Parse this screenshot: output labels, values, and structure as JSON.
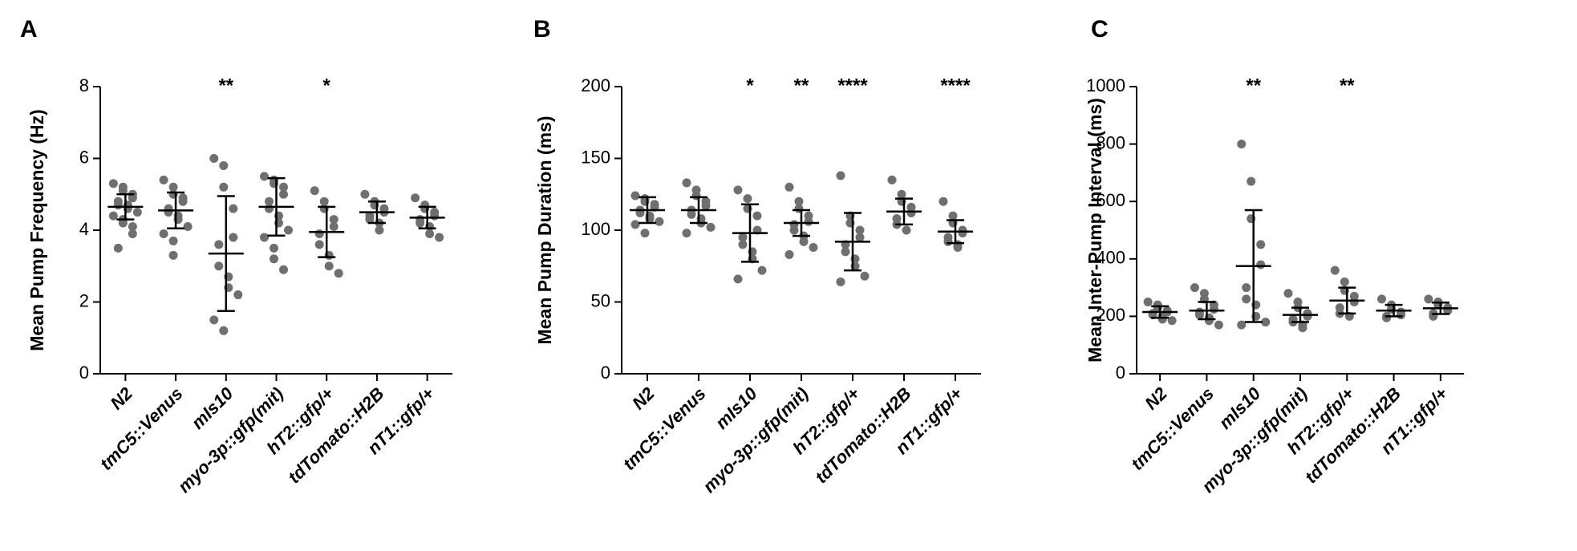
{
  "chart_data": [
    {
      "type": "dot",
      "panel_label": "A",
      "ylabel": "Mean Pump Frequency (Hz)",
      "color": "#6f6f6f",
      "categories": [
        "N2",
        "tmC5::Venus",
        "mIs10",
        "myo-3p::gfp(mit)",
        "hT2::gfp/+",
        "tdTomato::H2B",
        "nT1::gfp/+"
      ],
      "ylim": [
        0,
        8
      ],
      "yticks": [
        0,
        2,
        4,
        6,
        8
      ],
      "means": [
        4.65,
        4.55,
        3.35,
        4.65,
        3.95,
        4.5,
        4.35
      ],
      "sds": [
        0.35,
        0.5,
        1.6,
        0.8,
        0.7,
        0.3,
        0.3
      ],
      "significance": [
        null,
        null,
        "**",
        null,
        "*",
        null,
        null
      ],
      "points": [
        [
          5.3,
          5.2,
          5.1,
          5.0,
          4.9,
          4.8,
          4.7,
          4.7,
          4.6,
          4.5,
          4.4,
          4.3,
          4.2,
          4.1,
          3.9,
          3.5
        ],
        [
          5.4,
          5.2,
          5.0,
          4.9,
          4.8,
          4.6,
          4.5,
          4.4,
          4.3,
          4.1,
          3.9,
          3.7,
          3.3
        ],
        [
          6.0,
          5.8,
          5.2,
          4.6,
          3.8,
          3.6,
          3.0,
          2.7,
          2.4,
          2.2,
          1.5,
          1.2
        ],
        [
          5.5,
          5.4,
          5.3,
          5.2,
          5.0,
          4.8,
          4.6,
          4.4,
          4.2,
          4.0,
          3.8,
          3.5,
          3.2,
          2.9
        ],
        [
          5.1,
          4.8,
          4.6,
          4.3,
          4.1,
          3.9,
          3.6,
          3.3,
          3.0,
          2.8
        ],
        [
          5.0,
          4.8,
          4.7,
          4.6,
          4.5,
          4.4,
          4.3,
          4.2,
          4.0
        ],
        [
          4.9,
          4.7,
          4.6,
          4.5,
          4.4,
          4.3,
          4.2,
          4.1,
          3.9,
          3.8
        ]
      ]
    },
    {
      "type": "dot",
      "panel_label": "B",
      "ylabel": "Mean Pump Duration (ms)",
      "color": "#6f6f6f",
      "categories": [
        "N2",
        "tmC5::Venus",
        "mIs10",
        "myo-3p::gfp(mit)",
        "hT2::gfp/+",
        "tdTomato::H2B",
        "nT1::gfp/+"
      ],
      "ylim": [
        0,
        200
      ],
      "yticks": [
        0,
        50,
        100,
        150,
        200
      ],
      "means": [
        114,
        114,
        98,
        105,
        92,
        113,
        99
      ],
      "sds": [
        9,
        9,
        20,
        9,
        20,
        9,
        8
      ],
      "significance": [
        null,
        null,
        "*",
        "**",
        "****",
        null,
        "****"
      ],
      "points": [
        [
          124,
          122,
          120,
          118,
          116,
          114,
          112,
          110,
          108,
          106,
          104,
          98
        ],
        [
          133,
          128,
          124,
          120,
          117,
          114,
          111,
          108,
          105,
          102,
          98
        ],
        [
          128,
          122,
          115,
          110,
          100,
          95,
          90,
          85,
          80,
          72,
          66
        ],
        [
          130,
          120,
          115,
          110,
          106,
          104,
          100,
          96,
          92,
          88,
          83
        ],
        [
          138,
          110,
          105,
          100,
          95,
          90,
          85,
          80,
          75,
          68,
          64
        ],
        [
          135,
          125,
          120,
          116,
          112,
          108,
          104,
          100
        ],
        [
          120,
          110,
          105,
          100,
          98,
          95,
          92,
          90,
          88
        ]
      ]
    },
    {
      "type": "dot",
      "panel_label": "C",
      "ylabel": "Mean Inter-Pump Interval (ms)",
      "color": "#6f6f6f",
      "categories": [
        "N2",
        "tmC5::Venus",
        "mIs10",
        "myo-3p::gfp(mit)",
        "hT2::gfp/+",
        "tdTomato::H2B",
        "nT1::gfp/+"
      ],
      "ylim": [
        0,
        1000
      ],
      "yticks": [
        0,
        200,
        400,
        600,
        800,
        1000
      ],
      "means": [
        215,
        220,
        375,
        205,
        255,
        220,
        228
      ],
      "sds": [
        20,
        30,
        195,
        25,
        45,
        20,
        20
      ],
      "significance": [
        null,
        null,
        "**",
        null,
        "**",
        null,
        null
      ],
      "points": [
        [
          250,
          240,
          230,
          220,
          215,
          210,
          205,
          200,
          190,
          185
        ],
        [
          300,
          280,
          260,
          240,
          225,
          215,
          205,
          195,
          185,
          170
        ],
        [
          800,
          670,
          540,
          450,
          380,
          300,
          260,
          240,
          200,
          180,
          170
        ],
        [
          280,
          250,
          230,
          210,
          200,
          190,
          180,
          170,
          160
        ],
        [
          360,
          320,
          290,
          270,
          250,
          230,
          210,
          200
        ],
        [
          260,
          240,
          225,
          215,
          205,
          200,
          195
        ],
        [
          260,
          250,
          240,
          230,
          220,
          210,
          200
        ]
      ]
    }
  ]
}
